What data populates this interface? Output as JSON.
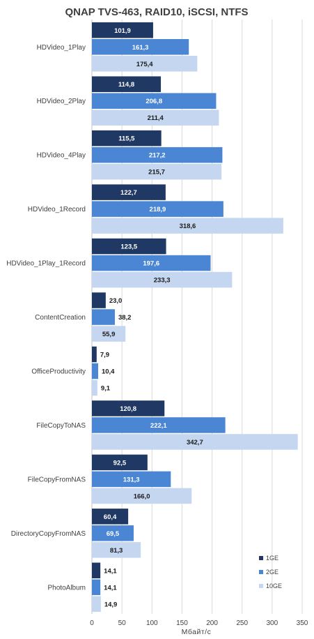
{
  "chart_data": {
    "type": "bar",
    "orientation": "horizontal",
    "title": "QNAP TVS-463, RAID10, iSCSI, NTFS",
    "xlabel": "Мбайт/с",
    "ylabel": "",
    "xlim": [
      0,
      350
    ],
    "ticks": [
      0,
      50,
      100,
      150,
      200,
      250,
      300,
      350
    ],
    "tick_labels": [
      "0",
      "50",
      "100",
      "150",
      "200",
      "250",
      "300",
      "350"
    ],
    "grid": true,
    "legend_position": "bottom-right",
    "categories": [
      "HDVideo_1Play",
      "HDVideo_2Play",
      "HDVideo_4Play",
      "HDVideo_1Record",
      "HDVideo_1Play_1Record",
      "ContentCreation",
      "OfficeProductivity",
      "FileCopyToNAS",
      "FileCopyFromNAS",
      "DirectoryCopyFromNAS",
      "PhotoAlbum"
    ],
    "series": [
      {
        "name": "1GE",
        "color": "#1f3864",
        "label_color": "#ffffff",
        "values": [
          101.9,
          114.8,
          115.5,
          122.7,
          123.5,
          23.0,
          7.9,
          120.8,
          92.5,
          60.4,
          14.1
        ],
        "labels": [
          "101,9",
          "114,8",
          "115,5",
          "122,7",
          "123,5",
          "23,0",
          "7,9",
          "120,8",
          "92,5",
          "60,4",
          "14,1"
        ]
      },
      {
        "name": "2GE",
        "color": "#4a86d4",
        "label_color": "#ffffff",
        "values": [
          161.3,
          206.8,
          217.2,
          218.9,
          197.6,
          38.2,
          10.4,
          222.1,
          131.3,
          69.5,
          14.1
        ],
        "labels": [
          "161,3",
          "206,8",
          "217,2",
          "218,9",
          "197,6",
          "38,2",
          "10,4",
          "222,1",
          "131,3",
          "69,5",
          "14,1"
        ]
      },
      {
        "name": "10GE",
        "color": "#c5d7f0",
        "label_color": "#1a1a1a",
        "values": [
          175.4,
          211.4,
          215.7,
          318.6,
          233.3,
          55.9,
          9.1,
          342.7,
          166.0,
          81.3,
          14.9
        ],
        "labels": [
          "175,4",
          "211,4",
          "215,7",
          "318,6",
          "233,3",
          "55,9",
          "9,1",
          "342,7",
          "166,0",
          "81,3",
          "14,9"
        ]
      }
    ]
  }
}
